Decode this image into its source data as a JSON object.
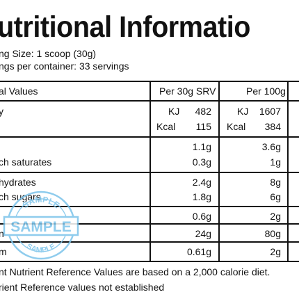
{
  "title": "utritional Informatio",
  "serving_size": "ng Size: 1 scoop (30g)",
  "servings_per_container": "ngs per container: 33 servings",
  "table": {
    "headers": {
      "label": "al Values",
      "per_serving": "Per 30g SRV",
      "per_100g": "Per 100g"
    },
    "energy": {
      "label": "y",
      "kj_unit": "KJ",
      "kj_serv": "482",
      "kj_100": "1607",
      "kcal_unit": "Kcal",
      "kcal_serv": "115",
      "kcal_100": "384"
    },
    "fat": {
      "serv": "1.1g",
      "per100": "3.6g"
    },
    "saturates": {
      "label": "ch saturates",
      "serv": "0.3g",
      "per100": "1g"
    },
    "carbs": {
      "label": "hydrates",
      "serv": "2.4g",
      "per100": "8g"
    },
    "sugars": {
      "label": "ch sugars",
      "serv": "1.8g",
      "per100": "6g"
    },
    "fibre": {
      "serv": "0.6g",
      "per100": "2g"
    },
    "protein": {
      "label": "n",
      "serv": "24g",
      "per100": "80g"
    },
    "salt": {
      "label": "m",
      "serv": "0.61g",
      "per100": "2g"
    }
  },
  "footnote1": "nt Nutrient Reference Values are based on a 2,000 calorie diet.",
  "footnote2": "rient Reference values not established",
  "stamp": {
    "top": "SAMPLE",
    "band": "SAMPLE",
    "bottom": "SAMPLE",
    "color": "#7cc4ea"
  }
}
